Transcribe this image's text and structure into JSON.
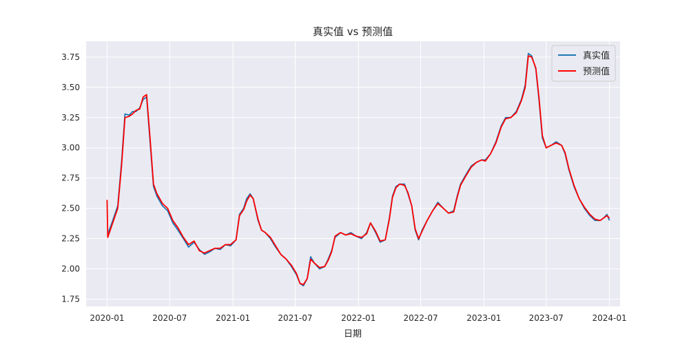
{
  "chart_data": {
    "type": "line",
    "title": "真实值 vs 预测值",
    "xlabel": "日期",
    "ylabel": "",
    "xlim": [
      "2019-11-01",
      "2024-02-01"
    ],
    "ylim": [
      1.69,
      3.88
    ],
    "x_ticks": [
      {
        "date": "2020-01-01",
        "label": "2020-01"
      },
      {
        "date": "2020-07-01",
        "label": "2020-07"
      },
      {
        "date": "2021-01-01",
        "label": "2021-01"
      },
      {
        "date": "2021-07-01",
        "label": "2021-07"
      },
      {
        "date": "2022-01-01",
        "label": "2022-01"
      },
      {
        "date": "2022-07-01",
        "label": "2022-07"
      },
      {
        "date": "2023-01-01",
        "label": "2023-01"
      },
      {
        "date": "2023-07-01",
        "label": "2023-07"
      },
      {
        "date": "2024-01-01",
        "label": "2024-01"
      }
    ],
    "y_ticks": [
      1.75,
      2.0,
      2.25,
      2.5,
      2.75,
      3.0,
      3.25,
      3.5,
      3.75
    ],
    "grid": true,
    "background": "#eaeaf2",
    "legend_position": "top-right",
    "series": [
      {
        "name": "真实值",
        "color": "#1f77b4",
        "points": [
          [
            "2020-01-02",
            2.28
          ],
          [
            "2020-01-15",
            2.38
          ],
          [
            "2020-02-01",
            2.52
          ],
          [
            "2020-02-12",
            2.88
          ],
          [
            "2020-02-22",
            3.28
          ],
          [
            "2020-03-05",
            3.27
          ],
          [
            "2020-03-15",
            3.3
          ],
          [
            "2020-03-25",
            3.3
          ],
          [
            "2020-04-05",
            3.33
          ],
          [
            "2020-04-15",
            3.4
          ],
          [
            "2020-04-25",
            3.42
          ],
          [
            "2020-05-05",
            3.05
          ],
          [
            "2020-05-15",
            2.68
          ],
          [
            "2020-05-25",
            2.6
          ],
          [
            "2020-06-10",
            2.52
          ],
          [
            "2020-06-25",
            2.48
          ],
          [
            "2020-07-10",
            2.38
          ],
          [
            "2020-07-25",
            2.32
          ],
          [
            "2020-08-10",
            2.25
          ],
          [
            "2020-08-25",
            2.18
          ],
          [
            "2020-09-10",
            2.22
          ],
          [
            "2020-09-25",
            2.16
          ],
          [
            "2020-10-10",
            2.12
          ],
          [
            "2020-10-25",
            2.14
          ],
          [
            "2020-11-10",
            2.17
          ],
          [
            "2020-11-25",
            2.16
          ],
          [
            "2020-12-10",
            2.2
          ],
          [
            "2020-12-25",
            2.19
          ],
          [
            "2021-01-10",
            2.24
          ],
          [
            "2021-01-20",
            2.45
          ],
          [
            "2021-02-01",
            2.5
          ],
          [
            "2021-02-10",
            2.58
          ],
          [
            "2021-02-20",
            2.62
          ],
          [
            "2021-03-01",
            2.58
          ],
          [
            "2021-03-15",
            2.4
          ],
          [
            "2021-03-25",
            2.32
          ],
          [
            "2021-04-05",
            2.3
          ],
          [
            "2021-04-20",
            2.25
          ],
          [
            "2021-05-05",
            2.18
          ],
          [
            "2021-05-20",
            2.12
          ],
          [
            "2021-06-05",
            2.08
          ],
          [
            "2021-06-20",
            2.02
          ],
          [
            "2021-07-05",
            1.95
          ],
          [
            "2021-07-15",
            1.88
          ],
          [
            "2021-07-25",
            1.86
          ],
          [
            "2021-08-05",
            1.92
          ],
          [
            "2021-08-15",
            2.1
          ],
          [
            "2021-08-25",
            2.05
          ],
          [
            "2021-09-10",
            2.0
          ],
          [
            "2021-09-25",
            2.02
          ],
          [
            "2021-10-05",
            2.08
          ],
          [
            "2021-10-15",
            2.15
          ],
          [
            "2021-10-25",
            2.26
          ],
          [
            "2021-11-10",
            2.3
          ],
          [
            "2021-11-25",
            2.28
          ],
          [
            "2021-12-10",
            2.3
          ],
          [
            "2021-12-25",
            2.27
          ],
          [
            "2022-01-10",
            2.25
          ],
          [
            "2022-01-25",
            2.3
          ],
          [
            "2022-02-05",
            2.38
          ],
          [
            "2022-02-20",
            2.3
          ],
          [
            "2022-03-05",
            2.22
          ],
          [
            "2022-03-20",
            2.24
          ],
          [
            "2022-04-01",
            2.42
          ],
          [
            "2022-04-10",
            2.6
          ],
          [
            "2022-04-20",
            2.68
          ],
          [
            "2022-05-01",
            2.7
          ],
          [
            "2022-05-15",
            2.7
          ],
          [
            "2022-05-25",
            2.62
          ],
          [
            "2022-06-05",
            2.52
          ],
          [
            "2022-06-15",
            2.32
          ],
          [
            "2022-06-25",
            2.24
          ],
          [
            "2022-07-05",
            2.32
          ],
          [
            "2022-07-20",
            2.4
          ],
          [
            "2022-08-05",
            2.48
          ],
          [
            "2022-08-20",
            2.55
          ],
          [
            "2022-09-05",
            2.5
          ],
          [
            "2022-09-20",
            2.46
          ],
          [
            "2022-10-05",
            2.48
          ],
          [
            "2022-10-15",
            2.6
          ],
          [
            "2022-10-25",
            2.7
          ],
          [
            "2022-11-10",
            2.78
          ],
          [
            "2022-11-25",
            2.85
          ],
          [
            "2022-12-10",
            2.88
          ],
          [
            "2022-12-25",
            2.9
          ],
          [
            "2023-01-05",
            2.9
          ],
          [
            "2023-01-20",
            2.95
          ],
          [
            "2023-02-05",
            3.05
          ],
          [
            "2023-02-20",
            3.18
          ],
          [
            "2023-03-05",
            3.25
          ],
          [
            "2023-03-20",
            3.25
          ],
          [
            "2023-04-05",
            3.3
          ],
          [
            "2023-04-20",
            3.4
          ],
          [
            "2023-05-01",
            3.52
          ],
          [
            "2023-05-10",
            3.78
          ],
          [
            "2023-05-20",
            3.76
          ],
          [
            "2023-06-01",
            3.65
          ],
          [
            "2023-06-10",
            3.4
          ],
          [
            "2023-06-20",
            3.08
          ],
          [
            "2023-07-01",
            3.0
          ],
          [
            "2023-07-15",
            3.02
          ],
          [
            "2023-07-30",
            3.05
          ],
          [
            "2023-08-15",
            3.02
          ],
          [
            "2023-08-25",
            2.95
          ],
          [
            "2023-09-05",
            2.82
          ],
          [
            "2023-09-20",
            2.68
          ],
          [
            "2023-10-05",
            2.58
          ],
          [
            "2023-10-20",
            2.5
          ],
          [
            "2023-11-05",
            2.44
          ],
          [
            "2023-11-20",
            2.4
          ],
          [
            "2023-12-05",
            2.4
          ],
          [
            "2023-12-15",
            2.42
          ],
          [
            "2023-12-25",
            2.45
          ],
          [
            "2024-01-01",
            2.4
          ]
        ]
      },
      {
        "name": "预测值",
        "color": "#ff0000",
        "points": [
          [
            "2020-01-01",
            2.57
          ],
          [
            "2020-01-03",
            2.26
          ],
          [
            "2020-01-15",
            2.36
          ],
          [
            "2020-02-01",
            2.5
          ],
          [
            "2020-02-12",
            2.85
          ],
          [
            "2020-02-22",
            3.25
          ],
          [
            "2020-03-05",
            3.26
          ],
          [
            "2020-03-15",
            3.28
          ],
          [
            "2020-03-25",
            3.31
          ],
          [
            "2020-04-05",
            3.32
          ],
          [
            "2020-04-15",
            3.42
          ],
          [
            "2020-04-25",
            3.44
          ],
          [
            "2020-05-05",
            3.08
          ],
          [
            "2020-05-15",
            2.7
          ],
          [
            "2020-05-25",
            2.62
          ],
          [
            "2020-06-10",
            2.54
          ],
          [
            "2020-06-25",
            2.5
          ],
          [
            "2020-07-10",
            2.4
          ],
          [
            "2020-07-25",
            2.34
          ],
          [
            "2020-08-10",
            2.26
          ],
          [
            "2020-08-25",
            2.2
          ],
          [
            "2020-09-10",
            2.23
          ],
          [
            "2020-09-25",
            2.15
          ],
          [
            "2020-10-10",
            2.13
          ],
          [
            "2020-10-25",
            2.15
          ],
          [
            "2020-11-10",
            2.17
          ],
          [
            "2020-11-25",
            2.17
          ],
          [
            "2020-12-10",
            2.2
          ],
          [
            "2020-12-25",
            2.2
          ],
          [
            "2021-01-10",
            2.24
          ],
          [
            "2021-01-20",
            2.44
          ],
          [
            "2021-02-01",
            2.49
          ],
          [
            "2021-02-10",
            2.56
          ],
          [
            "2021-02-20",
            2.61
          ],
          [
            "2021-03-01",
            2.58
          ],
          [
            "2021-03-15",
            2.41
          ],
          [
            "2021-03-25",
            2.32
          ],
          [
            "2021-04-05",
            2.3
          ],
          [
            "2021-04-20",
            2.26
          ],
          [
            "2021-05-05",
            2.19
          ],
          [
            "2021-05-20",
            2.12
          ],
          [
            "2021-06-05",
            2.08
          ],
          [
            "2021-06-20",
            2.03
          ],
          [
            "2021-07-05",
            1.96
          ],
          [
            "2021-07-15",
            1.88
          ],
          [
            "2021-07-25",
            1.87
          ],
          [
            "2021-08-05",
            1.92
          ],
          [
            "2021-08-15",
            2.08
          ],
          [
            "2021-08-25",
            2.05
          ],
          [
            "2021-09-10",
            2.01
          ],
          [
            "2021-09-25",
            2.02
          ],
          [
            "2021-10-05",
            2.07
          ],
          [
            "2021-10-15",
            2.14
          ],
          [
            "2021-10-25",
            2.27
          ],
          [
            "2021-11-10",
            2.3
          ],
          [
            "2021-11-25",
            2.28
          ],
          [
            "2021-12-10",
            2.29
          ],
          [
            "2021-12-25",
            2.27
          ],
          [
            "2022-01-10",
            2.26
          ],
          [
            "2022-01-25",
            2.29
          ],
          [
            "2022-02-05",
            2.38
          ],
          [
            "2022-02-20",
            2.31
          ],
          [
            "2022-03-05",
            2.23
          ],
          [
            "2022-03-20",
            2.24
          ],
          [
            "2022-04-01",
            2.41
          ],
          [
            "2022-04-10",
            2.59
          ],
          [
            "2022-04-20",
            2.67
          ],
          [
            "2022-05-01",
            2.7
          ],
          [
            "2022-05-15",
            2.69
          ],
          [
            "2022-05-25",
            2.63
          ],
          [
            "2022-06-05",
            2.52
          ],
          [
            "2022-06-15",
            2.33
          ],
          [
            "2022-06-25",
            2.25
          ],
          [
            "2022-07-05",
            2.31
          ],
          [
            "2022-07-20",
            2.4
          ],
          [
            "2022-08-05",
            2.48
          ],
          [
            "2022-08-20",
            2.54
          ],
          [
            "2022-09-05",
            2.5
          ],
          [
            "2022-09-20",
            2.46
          ],
          [
            "2022-10-05",
            2.47
          ],
          [
            "2022-10-15",
            2.59
          ],
          [
            "2022-10-25",
            2.69
          ],
          [
            "2022-11-10",
            2.77
          ],
          [
            "2022-11-25",
            2.84
          ],
          [
            "2022-12-10",
            2.88
          ],
          [
            "2022-12-25",
            2.9
          ],
          [
            "2023-01-05",
            2.89
          ],
          [
            "2023-01-20",
            2.95
          ],
          [
            "2023-02-05",
            3.04
          ],
          [
            "2023-02-20",
            3.17
          ],
          [
            "2023-03-05",
            3.24
          ],
          [
            "2023-03-20",
            3.25
          ],
          [
            "2023-04-05",
            3.29
          ],
          [
            "2023-04-20",
            3.39
          ],
          [
            "2023-05-01",
            3.5
          ],
          [
            "2023-05-10",
            3.76
          ],
          [
            "2023-05-20",
            3.75
          ],
          [
            "2023-06-01",
            3.66
          ],
          [
            "2023-06-10",
            3.42
          ],
          [
            "2023-06-20",
            3.1
          ],
          [
            "2023-07-01",
            3.0
          ],
          [
            "2023-07-15",
            3.02
          ],
          [
            "2023-07-30",
            3.04
          ],
          [
            "2023-08-15",
            3.02
          ],
          [
            "2023-08-25",
            2.96
          ],
          [
            "2023-09-05",
            2.83
          ],
          [
            "2023-09-20",
            2.69
          ],
          [
            "2023-10-05",
            2.58
          ],
          [
            "2023-10-20",
            2.51
          ],
          [
            "2023-11-05",
            2.45
          ],
          [
            "2023-11-20",
            2.41
          ],
          [
            "2023-12-05",
            2.4
          ],
          [
            "2023-12-15",
            2.42
          ],
          [
            "2023-12-25",
            2.44
          ],
          [
            "2024-01-01",
            2.42
          ]
        ]
      }
    ]
  }
}
